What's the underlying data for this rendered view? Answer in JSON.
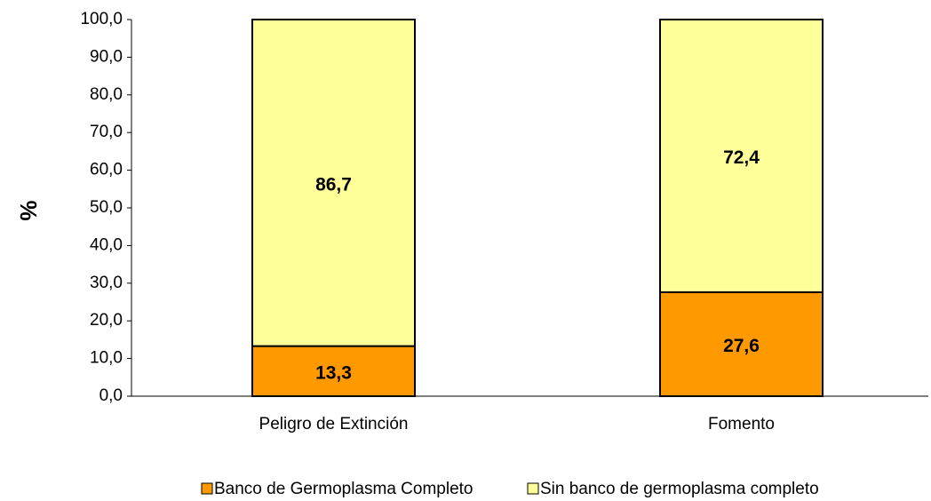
{
  "chart_data": {
    "type": "stacked_bar",
    "y_label": "%",
    "categories": [
      "Peligro de Extinción",
      "Fomento"
    ],
    "series": [
      {
        "name": "Banco de Germoplasma Completo",
        "color": "#FF9900",
        "values": [
          13.3,
          27.6
        ],
        "value_labels": [
          "13,3",
          "27,6"
        ]
      },
      {
        "name": "Sin banco de germoplasma completo",
        "color": "#FFFF99",
        "values": [
          86.7,
          72.4
        ],
        "value_labels": [
          "86,7",
          "72,4"
        ]
      }
    ],
    "ylim": [
      0,
      100
    ],
    "yticks": [
      {
        "value": 0,
        "label": "0,0"
      },
      {
        "value": 10,
        "label": "10,0"
      },
      {
        "value": 20,
        "label": "20,0"
      },
      {
        "value": 30,
        "label": "30,0"
      },
      {
        "value": 40,
        "label": "40,0"
      },
      {
        "value": 50,
        "label": "50,0"
      },
      {
        "value": 60,
        "label": "60,0"
      },
      {
        "value": 70,
        "label": "70,0"
      },
      {
        "value": 80,
        "label": "80,0"
      },
      {
        "value": 90,
        "label": "90,0"
      },
      {
        "value": 100,
        "label": "100,0"
      }
    ],
    "legend": "bottom"
  }
}
